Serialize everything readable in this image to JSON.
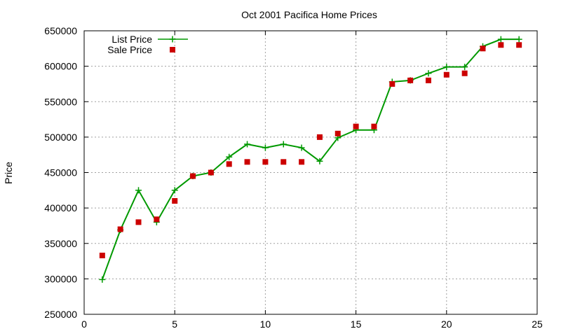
{
  "chart_data": {
    "type": "line",
    "title": "Oct 2001 Pacifica Home Prices",
    "xlabel": "",
    "ylabel": "Price",
    "xlim": [
      0,
      25
    ],
    "ylim": [
      250000,
      650000
    ],
    "xticks": [
      0,
      5,
      10,
      15,
      20,
      25
    ],
    "yticks": [
      250000,
      300000,
      350000,
      400000,
      450000,
      500000,
      550000,
      600000,
      650000
    ],
    "grid": true,
    "legend": "top-left",
    "series": [
      {
        "name": "List Price",
        "style": "line-plus",
        "color": "#009900",
        "x": [
          1,
          2,
          3,
          4,
          5,
          6,
          7,
          8,
          9,
          10,
          11,
          12,
          13,
          14,
          15,
          16,
          17,
          18,
          19,
          20,
          21,
          22,
          23,
          24
        ],
        "y": [
          299000,
          369000,
          425000,
          380000,
          425000,
          445000,
          450000,
          472000,
          490000,
          485000,
          490000,
          485000,
          466000,
          499000,
          510000,
          510000,
          578000,
          580000,
          590000,
          599000,
          599000,
          628000,
          638000,
          638000
        ]
      },
      {
        "name": "Sale Price",
        "style": "square",
        "color": "#cc0000",
        "x": [
          1,
          2,
          3,
          4,
          5,
          6,
          7,
          8,
          9,
          10,
          11,
          12,
          13,
          14,
          15,
          16,
          17,
          18,
          19,
          20,
          21,
          22,
          23,
          24
        ],
        "y": [
          333000,
          370000,
          380000,
          384000,
          410000,
          445000,
          450000,
          462000,
          465000,
          465000,
          465000,
          465000,
          500000,
          505000,
          515000,
          515000,
          575000,
          580000,
          580000,
          588000,
          590000,
          625000,
          630000,
          630000
        ]
      }
    ]
  }
}
